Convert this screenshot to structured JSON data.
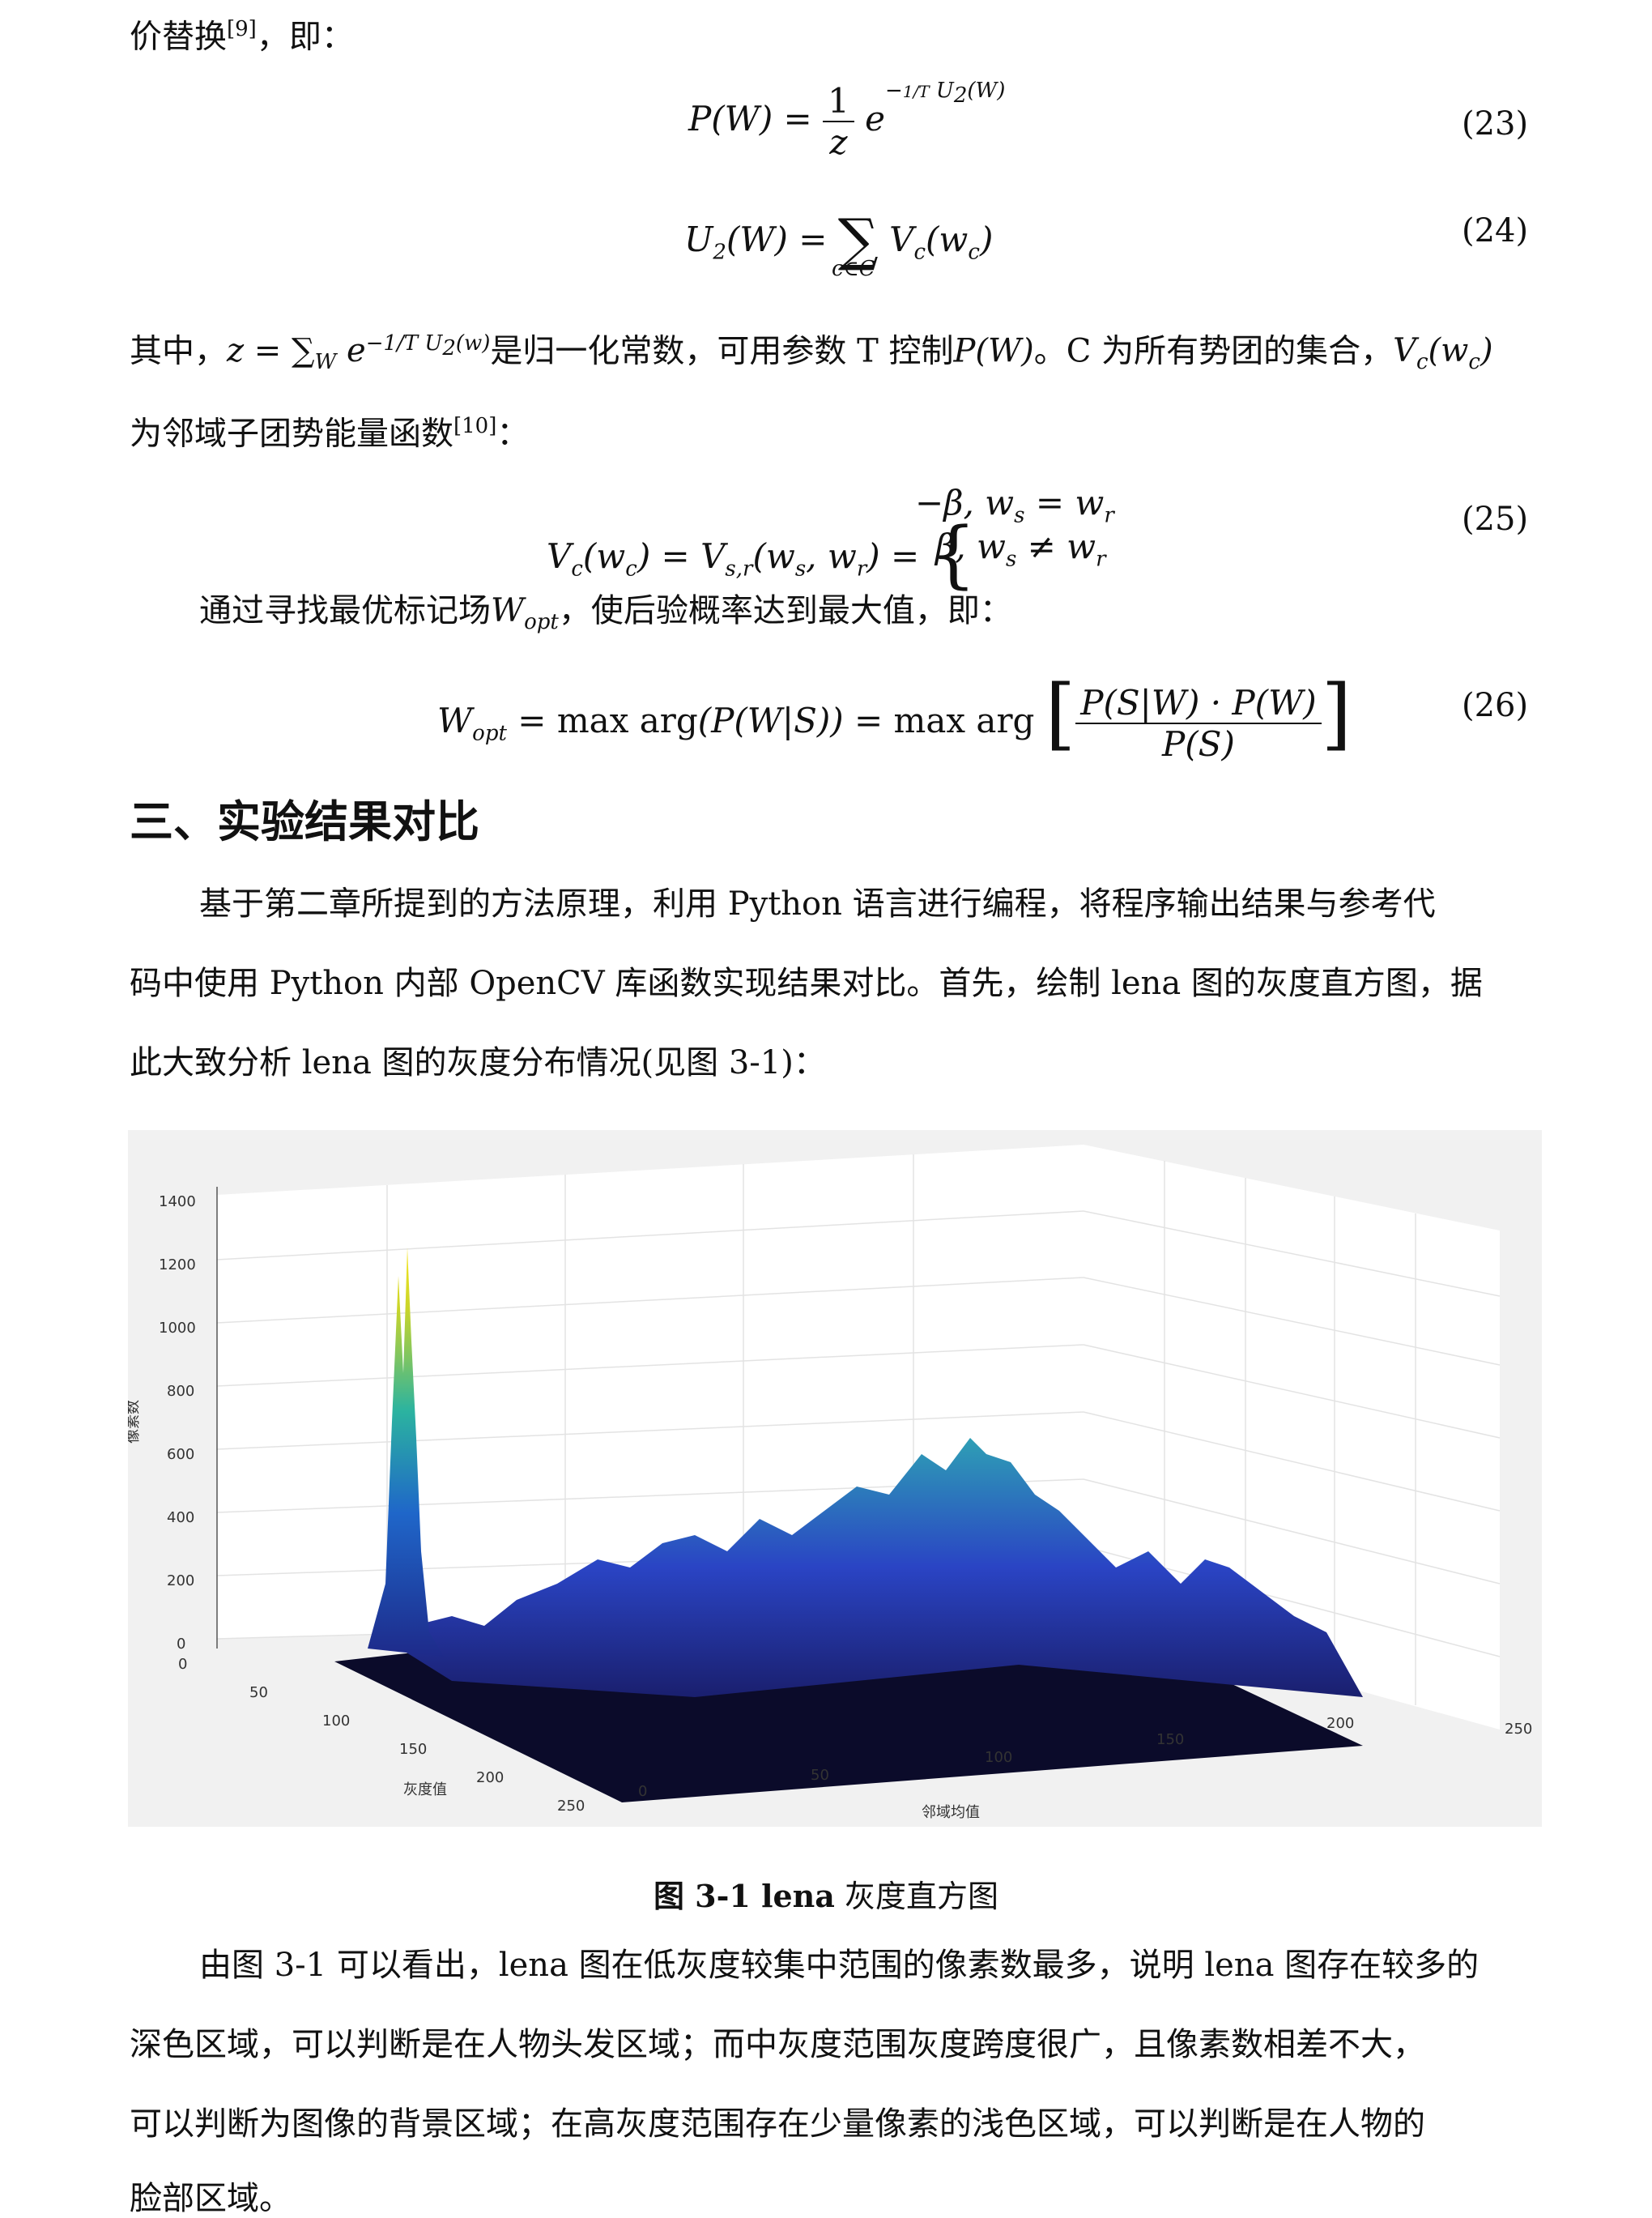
{
  "paragraphs": {
    "p0": "价替换",
    "p0_ref": "[9]",
    "p0_tail": "，即：",
    "p1_a": "其中，",
    "p1_b": "是归一化常数，可用参数 T 控制",
    "p1_c": "。C 为所有势团的集合，",
    "p2_a": "为邻域子团势能量函数",
    "p2_ref": "[10]",
    "p2_tail": "：",
    "p3_a": "通过寻找最优标记场",
    "p3_b": "，使后验概率达到最大值，即：",
    "p4": "基于第二章所提到的方法原理，利用 Python 语言进行编程，将程序输出结果与参考代",
    "p5": "码中使用 Python 内部 OpenCV 库函数实现结果对比。首先，绘制 lena 图的灰度直方图，据",
    "p6": "此大致分析 lena 图的灰度分布情况(见图 3-1)：",
    "p7": "由图 3-1 可以看出，lena 图在低灰度较集中范围的像素数最多，说明 lena 图存在较多的",
    "p8": "深色区域，可以判断是在人物头发区域；而中灰度范围灰度跨度很广，且像素数相差不大，",
    "p9": "可以判断为图像的背景区域；在高灰度范围存在少量像素的浅色区域，可以判断是在人物的",
    "p10": "脸部区域。"
  },
  "heading": "三、实验结果对比",
  "equations": {
    "n23": "(23)",
    "n24": "(24)",
    "n25": "(25)",
    "n26": "(26)"
  },
  "figure_caption": {
    "label": "图 3-1 lena",
    "rest": " 灰度直方图"
  },
  "chart_data": {
    "type": "surface3d",
    "title": "",
    "zlabel": "像素数",
    "xlabel": "灰度值",
    "ylabel": "邻域均值",
    "zticks": [
      0,
      200,
      400,
      600,
      800,
      1000,
      1200,
      1400
    ],
    "xticks": [
      0,
      50,
      100,
      150,
      200,
      250
    ],
    "yticks": [
      0,
      50,
      100,
      150,
      200,
      250
    ],
    "zlim": [
      0,
      1400
    ],
    "grid": true,
    "peak": {
      "gray": 25,
      "neighbor_mean": 25,
      "count": 1200
    },
    "colormap": "parula"
  }
}
